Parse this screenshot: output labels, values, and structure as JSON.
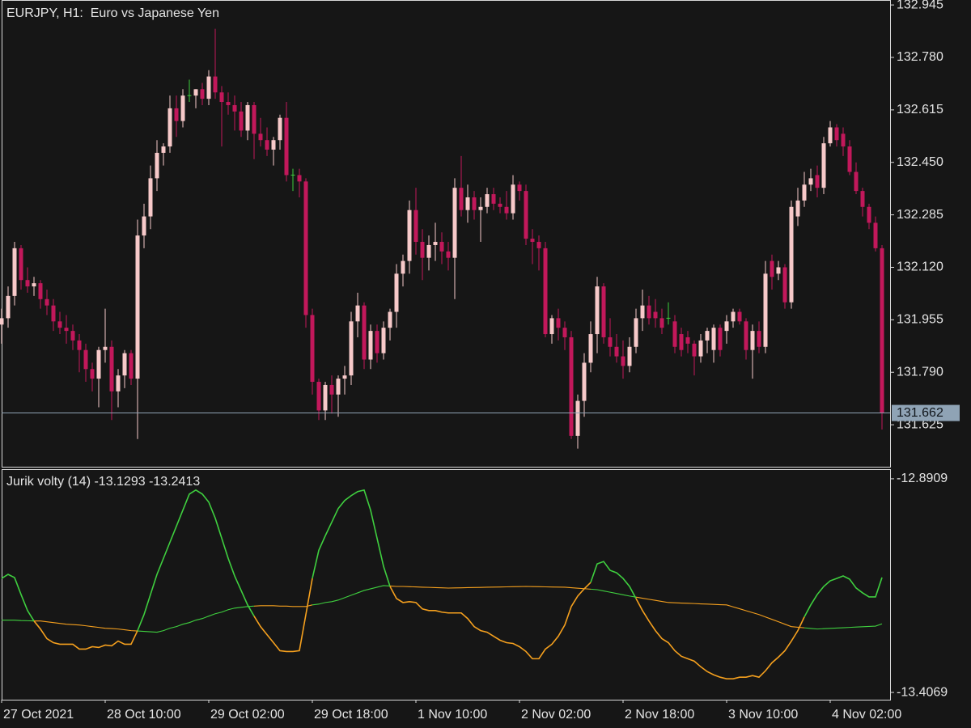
{
  "chart_data": [
    {
      "type": "candlestick",
      "title": "EURJPY, H1:  Euro vs Japanese Yen",
      "open": [
        131.94,
        131.96,
        132.03,
        132.18,
        132.08,
        132.06,
        132.07,
        132.02,
        132.0,
        131.95,
        131.93,
        131.92,
        131.89,
        131.86,
        131.8,
        131.77,
        131.86,
        131.87,
        131.73,
        131.78,
        131.85,
        131.77,
        132.22,
        132.28,
        132.4,
        132.48,
        132.5,
        132.62,
        132.58,
        132.66,
        132.66,
        132.68,
        132.65,
        132.72,
        132.67,
        132.64,
        132.63,
        132.61,
        132.55,
        132.63,
        132.54,
        132.52,
        132.49,
        132.52,
        132.59,
        132.41,
        132.41,
        132.39,
        131.97,
        131.76,
        131.67,
        131.75,
        131.72,
        131.77,
        131.78,
        131.95,
        132.0,
        131.83,
        131.92,
        131.85,
        131.93,
        131.98,
        132.1,
        132.14,
        132.3,
        132.2,
        132.15,
        132.19,
        132.2,
        132.17,
        132.15,
        132.37,
        132.3,
        132.34,
        132.3,
        132.31,
        132.35,
        132.32,
        132.31,
        132.29,
        132.38,
        132.36,
        132.21,
        132.2,
        132.18,
        131.91,
        131.96,
        131.93,
        131.9,
        131.59,
        131.7,
        131.82,
        131.91,
        132.06,
        131.9,
        131.87,
        131.84,
        131.81,
        131.87,
        131.96,
        132.0,
        131.98,
        131.96,
        131.96,
        131.95,
        131.91,
        131.9,
        131.88,
        131.84,
        131.89,
        131.86,
        131.93,
        131.92,
        131.95,
        131.98,
        131.95,
        131.86,
        131.92,
        131.87,
        132.14,
        132.1,
        132.12,
        132.01,
        132.28,
        132.33,
        132.38,
        132.41,
        132.37,
        132.51,
        132.56,
        132.54,
        132.5,
        132.42,
        132.36,
        132.31,
        132.26,
        132.18
      ],
      "high": [
        131.99,
        132.06,
        132.2,
        132.19,
        132.12,
        132.09,
        132.08,
        132.05,
        132.02,
        131.98,
        131.97,
        131.94,
        131.91,
        131.88,
        131.82,
        131.87,
        131.99,
        131.89,
        131.8,
        131.86,
        131.86,
        132.27,
        132.32,
        132.44,
        132.52,
        132.51,
        132.66,
        132.66,
        132.68,
        132.71,
        132.68,
        132.7,
        132.74,
        132.87,
        132.69,
        132.67,
        132.66,
        132.64,
        132.64,
        132.64,
        132.59,
        132.56,
        132.53,
        132.6,
        132.64,
        132.43,
        132.43,
        132.4,
        131.99,
        131.77,
        131.76,
        131.78,
        131.78,
        131.81,
        131.98,
        132.04,
        132.01,
        131.94,
        131.94,
        131.95,
        131.99,
        132.13,
        132.16,
        132.33,
        132.37,
        132.24,
        132.22,
        132.26,
        132.23,
        132.2,
        132.4,
        132.47,
        132.38,
        132.36,
        132.34,
        132.37,
        132.37,
        132.34,
        132.36,
        132.41,
        132.39,
        132.38,
        132.24,
        132.22,
        132.2,
        131.97,
        131.99,
        131.95,
        131.92,
        131.72,
        131.85,
        131.95,
        132.09,
        132.07,
        131.96,
        131.91,
        131.89,
        131.9,
        131.99,
        132.05,
        132.03,
        132.02,
        131.99,
        132.01,
        131.97,
        131.93,
        131.92,
        131.89,
        131.91,
        131.93,
        131.94,
        131.94,
        131.97,
        131.99,
        131.99,
        131.96,
        131.94,
        131.95,
        132.14,
        132.16,
        132.14,
        132.13,
        132.33,
        132.37,
        132.42,
        132.43,
        132.44,
        132.53,
        132.58,
        132.57,
        132.56,
        132.52,
        132.45,
        132.37,
        132.32,
        132.28,
        132.19
      ],
      "low": [
        131.88,
        131.93,
        132.0,
        132.05,
        132.04,
        132.03,
        131.99,
        131.97,
        131.92,
        131.91,
        131.88,
        131.86,
        131.79,
        131.76,
        131.73,
        131.68,
        131.82,
        131.64,
        131.68,
        131.74,
        131.75,
        131.58,
        132.18,
        132.24,
        132.36,
        132.44,
        132.48,
        132.53,
        132.56,
        132.64,
        132.62,
        132.63,
        132.63,
        132.65,
        132.5,
        132.6,
        132.55,
        132.53,
        132.52,
        132.46,
        132.5,
        132.47,
        132.44,
        132.49,
        132.39,
        132.36,
        132.34,
        131.93,
        131.72,
        131.64,
        131.64,
        131.66,
        131.65,
        131.72,
        131.75,
        131.9,
        131.8,
        131.8,
        131.82,
        131.83,
        131.89,
        131.93,
        132.06,
        132.1,
        132.16,
        132.08,
        132.11,
        132.14,
        132.13,
        132.11,
        132.02,
        132.28,
        132.26,
        132.27,
        132.2,
        132.29,
        132.3,
        132.29,
        132.27,
        132.27,
        132.33,
        132.19,
        132.13,
        132.11,
        131.9,
        131.88,
        131.89,
        131.86,
        131.58,
        131.55,
        131.65,
        131.79,
        131.85,
        131.88,
        131.84,
        131.82,
        131.77,
        131.79,
        131.85,
        131.92,
        131.94,
        131.93,
        131.91,
        131.94,
        131.85,
        131.84,
        131.85,
        131.78,
        131.82,
        131.85,
        131.82,
        131.84,
        131.88,
        131.93,
        131.94,
        131.83,
        131.77,
        131.85,
        131.85,
        132.05,
        132.08,
        131.99,
        131.99,
        132.25,
        132.31,
        132.36,
        132.34,
        132.35,
        132.5,
        132.5,
        132.47,
        132.41,
        132.35,
        132.28,
        132.24,
        132.17,
        131.61
      ],
      "close": [
        131.96,
        132.03,
        132.18,
        132.08,
        132.06,
        132.07,
        132.02,
        132.0,
        131.95,
        131.93,
        131.92,
        131.89,
        131.86,
        131.8,
        131.77,
        131.86,
        131.87,
        131.73,
        131.78,
        131.85,
        131.77,
        132.22,
        132.28,
        132.4,
        132.48,
        132.5,
        132.62,
        132.58,
        132.66,
        132.66,
        132.68,
        132.65,
        132.72,
        132.67,
        132.64,
        132.63,
        132.61,
        132.55,
        132.63,
        132.54,
        132.52,
        132.49,
        132.52,
        132.59,
        132.41,
        132.41,
        132.39,
        131.97,
        131.76,
        131.67,
        131.75,
        131.72,
        131.77,
        131.78,
        131.95,
        132.0,
        131.83,
        131.92,
        131.85,
        131.93,
        131.98,
        132.1,
        132.14,
        132.3,
        132.2,
        132.15,
        132.19,
        132.2,
        132.17,
        132.15,
        132.37,
        132.3,
        132.34,
        132.3,
        132.31,
        132.35,
        132.32,
        132.31,
        132.29,
        132.38,
        132.36,
        132.21,
        132.2,
        132.18,
        131.91,
        131.96,
        131.93,
        131.9,
        131.59,
        131.7,
        131.82,
        131.91,
        132.06,
        131.9,
        131.87,
        131.84,
        131.81,
        131.87,
        131.96,
        132.0,
        131.96,
        131.96,
        131.93,
        131.96,
        131.87,
        131.86,
        131.88,
        131.84,
        131.89,
        131.92,
        131.93,
        131.86,
        131.95,
        131.98,
        131.95,
        131.86,
        131.92,
        131.87,
        132.1,
        132.09,
        132.12,
        132.01,
        132.31,
        132.33,
        132.38,
        132.4,
        132.37,
        132.51,
        132.56,
        132.52,
        132.5,
        132.42,
        132.36,
        132.31,
        132.26,
        132.18,
        131.662
      ],
      "up_color": "#f7c9c9",
      "down_color": "#c2185b",
      "doji_color": "#3ccf3c",
      "last_price_color": "#8fa3b5",
      "ylim": [
        131.493,
        132.958
      ],
      "yticks": [
        132.945,
        {
          "value": 132.78,
          "label": "132.780"
        },
        132.615,
        {
          "value": 132.45,
          "label": "132.450"
        },
        132.285,
        {
          "value": 132.12,
          "label": "132.120"
        },
        131.955,
        {
          "value": 131.79,
          "label": "131.790"
        },
        131.625
      ]
    },
    {
      "type": "line",
      "title": "Jurik volty (14) -13.1293 -13.2413",
      "series": [
        {
          "values": [
            -13.1315,
            -13.1218,
            -13.1295,
            -13.1703,
            -13.2091,
            -13.2343,
            -13.2537,
            -13.277,
            -13.2867,
            -13.2905,
            -13.2905,
            -13.2905,
            -13.3022,
            -13.3022,
            -13.2964,
            -13.2983,
            -13.2925,
            -13.2944,
            -13.2828,
            -13.2905,
            -13.2905,
            -13.2576,
            -13.2188,
            -13.1703,
            -13.1218,
            -13.083,
            -13.0442,
            -13.0055,
            -12.9666,
            -12.9278,
            -12.9181,
            -12.9278,
            -12.9472,
            -12.986,
            -13.0345,
            -13.083,
            -13.1256,
            -13.1606,
            -13.1955,
            -13.2226,
            -13.2479,
            -13.2673,
            -13.2867,
            -13.3061,
            -13.308,
            -13.308,
            -13.3061,
            -13.2188,
            -13.1315,
            -13.0636,
            -13.0286,
            -12.9957,
            -12.9627,
            -12.9433,
            -12.9316,
            -12.9219,
            -12.9181,
            -12.9666,
            -13.0345,
            -13.1024,
            -13.1509,
            -13.18,
            -13.1897,
            -13.1877,
            -13.1897,
            -13.2052,
            -13.2091,
            -13.2091,
            -13.2129,
            -13.2149,
            -13.2149,
            -13.2149,
            -13.2285,
            -13.2479,
            -13.2576,
            -13.2614,
            -13.2711,
            -13.2808,
            -13.2867,
            -13.2886,
            -13.2964,
            -13.308,
            -13.3255,
            -13.3255,
            -13.3022,
            -13.2905,
            -13.2711,
            -13.244,
            -13.1994,
            -13.1741,
            -13.1567,
            -13.1412,
            -13.0965,
            -13.0907,
            -13.1121,
            -13.1179,
            -13.1315,
            -13.1509,
            -13.18,
            -13.2091,
            -13.2343,
            -13.2576,
            -13.277,
            -13.2867,
            -13.3061,
            -13.3196,
            -13.3255,
            -13.3313,
            -13.3449,
            -13.3565,
            -13.3643,
            -13.3701,
            -13.374,
            -13.374,
            -13.3701,
            -13.3701,
            -13.3662,
            -13.3701,
            -13.3546,
            -13.3352,
            -13.3216,
            -13.3061,
            -13.2828,
            -13.2576,
            -13.2246,
            -13.1955,
            -13.1703,
            -13.1509,
            -13.1373,
            -13.1315,
            -13.1256,
            -13.1334,
            -13.1547,
            -13.1664,
            -13.1761,
            -13.1761,
            -13.1293
          ]
        },
        {
          "values": [
            -13.2323,
            -13.2323,
            -13.2323,
            -13.2333,
            -13.2337,
            -13.2343,
            -13.2343,
            -13.2362,
            -13.2382,
            -13.2401,
            -13.2421,
            -13.243,
            -13.244,
            -13.2459,
            -13.2479,
            -13.2498,
            -13.2518,
            -13.2527,
            -13.2537,
            -13.2556,
            -13.2576,
            -13.2585,
            -13.2595,
            -13.2605,
            -13.2614,
            -13.2576,
            -13.2518,
            -13.2479,
            -13.2421,
            -13.2382,
            -13.2323,
            -13.2285,
            -13.2226,
            -13.2168,
            -13.2129,
            -13.2071,
            -13.2032,
            -13.2013,
            -13.1994,
            -13.1984,
            -13.1974,
            -13.1974,
            -13.1974,
            -13.1984,
            -13.1984,
            -13.1994,
            -13.1994,
            -13.1994,
            -13.1955,
            -13.1936,
            -13.1897,
            -13.1877,
            -13.1838,
            -13.178,
            -13.1722,
            -13.1664,
            -13.1606,
            -13.1567,
            -13.1528,
            -13.1489,
            -13.1499,
            -13.1509,
            -13.1509,
            -13.1515,
            -13.1521,
            -13.1527,
            -13.1531,
            -13.1537,
            -13.1542,
            -13.1548,
            -13.1544,
            -13.1542,
            -13.1538,
            -13.1534,
            -13.1532,
            -13.1528,
            -13.1525,
            -13.1523,
            -13.1519,
            -13.1515,
            -13.1513,
            -13.1509,
            -13.1513,
            -13.1515,
            -13.1519,
            -13.1523,
            -13.1525,
            -13.1528,
            -13.154,
            -13.1552,
            -13.1563,
            -13.1575,
            -13.1587,
            -13.1617,
            -13.1648,
            -13.1679,
            -13.171,
            -13.1741,
            -13.1766,
            -13.1793,
            -13.1819,
            -13.1844,
            -13.1871,
            -13.1897,
            -13.1903,
            -13.1911,
            -13.1916,
            -13.1922,
            -13.193,
            -13.1936,
            -13.1942,
            -13.195,
            -13.1955,
            -13.2002,
            -13.2048,
            -13.2095,
            -13.2141,
            -13.2188,
            -13.2246,
            -13.2304,
            -13.2362,
            -13.2421,
            -13.2479,
            -13.2494,
            -13.2508,
            -13.2523,
            -13.2537,
            -13.2529,
            -13.2521,
            -13.2514,
            -13.2506,
            -13.2498,
            -13.249,
            -13.2483,
            -13.2475,
            -13.2467,
            -13.2413
          ]
        }
      ],
      "above_color": "#3fcf3f",
      "below_color": "#f5a01e",
      "ylim": [
        -12.8696,
        -13.4244
      ],
      "yticks": [
        -12.8909,
        -13.4069
      ],
      "xticks": [
        {
          "value": 0,
          "label": "27 Oct 2021"
        },
        {
          "value": 16,
          "label": "28 Oct 10:00"
        },
        {
          "value": 32,
          "label": "29 Oct 02:00"
        },
        {
          "value": 48,
          "label": "29 Oct 18:00"
        },
        {
          "value": 64,
          "label": "1 Nov 10:00"
        },
        {
          "value": 80,
          "label": "2 Nov 02:00"
        },
        {
          "value": 96,
          "label": "2 Nov 18:00"
        },
        {
          "value": 112,
          "label": "3 Nov 10:00"
        },
        {
          "value": 128,
          "label": "4 Nov 02:00"
        }
      ]
    }
  ]
}
